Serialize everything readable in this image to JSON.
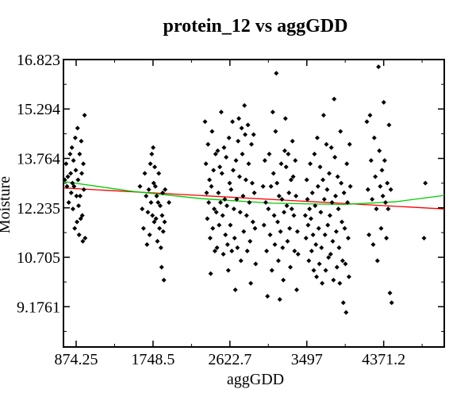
{
  "chart_data": {
    "type": "scatter",
    "title": "protein_12 vs aggGDD",
    "xlabel": "aggGDD",
    "ylabel": "Moisture",
    "xlim": [
      730,
      5060
    ],
    "ylim": [
      7.93,
      16.823
    ],
    "x_ticks": [
      874.25,
      1748.5,
      2622.7,
      3497,
      4371.2
    ],
    "x_tick_labels": [
      "874.25",
      "1748.5",
      "2622.7",
      "3497",
      "4371.2"
    ],
    "y_ticks": [
      9.1761,
      10.705,
      12.235,
      13.764,
      15.294,
      16.823
    ],
    "y_tick_labels": [
      "9.1761",
      "10.705",
      "12.235",
      "13.764",
      "15.294",
      "16.823"
    ],
    "grid": false,
    "legend": "none",
    "fit_lines": [
      {
        "kind": "linear",
        "color": "#ff0000",
        "x": [
          730,
          5060
        ],
        "y": [
          12.85,
          12.2
        ]
      },
      {
        "kind": "quadratic",
        "color": "#00cc00",
        "x": [
          730,
          1500,
          2300,
          3100,
          3900,
          4500,
          5060
        ],
        "y": [
          13.05,
          12.75,
          12.52,
          12.38,
          12.34,
          12.42,
          12.62
        ]
      }
    ],
    "series": [
      {
        "marker_color": "#000000",
        "points": [
          [
            745,
            13.1
          ],
          [
            760,
            13.6
          ],
          [
            770,
            12.9
          ],
          [
            780,
            13.2
          ],
          [
            790,
            12.4
          ],
          [
            805,
            13.9
          ],
          [
            812,
            13.3
          ],
          [
            818,
            12.7
          ],
          [
            826,
            14.1
          ],
          [
            832,
            13.0
          ],
          [
            838,
            12.2
          ],
          [
            844,
            13.7
          ],
          [
            850,
            12.9
          ],
          [
            858,
            11.6
          ],
          [
            864,
            14.4
          ],
          [
            870,
            13.4
          ],
          [
            878,
            12.6
          ],
          [
            884,
            11.8
          ],
          [
            890,
            14.7
          ],
          [
            896,
            13.1
          ],
          [
            902,
            12.3
          ],
          [
            908,
            11.4
          ],
          [
            914,
            13.9
          ],
          [
            920,
            12.6
          ],
          [
            926,
            11.9
          ],
          [
            932,
            14.3
          ],
          [
            938,
            13.3
          ],
          [
            944,
            12.0
          ],
          [
            950,
            11.2
          ],
          [
            956,
            13.6
          ],
          [
            962,
            12.8
          ],
          [
            970,
            15.1
          ],
          [
            976,
            11.3
          ],
          [
            1600,
            12.9
          ],
          [
            1625,
            12.2
          ],
          [
            1640,
            11.6
          ],
          [
            1655,
            13.3
          ],
          [
            1670,
            12.6
          ],
          [
            1680,
            11.1
          ],
          [
            1690,
            12.1
          ],
          [
            1700,
            12.8
          ],
          [
            1710,
            11.4
          ],
          [
            1718,
            13.6
          ],
          [
            1726,
            12.4
          ],
          [
            1734,
            13.9
          ],
          [
            1742,
            12.0
          ],
          [
            1750,
            14.1
          ],
          [
            1756,
            13.0
          ],
          [
            1762,
            11.8
          ],
          [
            1768,
            13.5
          ],
          [
            1775,
            12.9
          ],
          [
            1782,
            11.9
          ],
          [
            1790,
            12.6
          ],
          [
            1798,
            11.2
          ],
          [
            1806,
            12.4
          ],
          [
            1814,
            13.3
          ],
          [
            1822,
            11.6
          ],
          [
            1830,
            12.3
          ],
          [
            1838,
            11.0
          ],
          [
            1846,
            10.4
          ],
          [
            1852,
            12.0
          ],
          [
            1858,
            12.7
          ],
          [
            1864,
            11.5
          ],
          [
            1872,
            10.0
          ],
          [
            1880,
            11.8
          ],
          [
            1886,
            12.8
          ],
          [
            1930,
            12.4
          ],
          [
            2340,
            14.9
          ],
          [
            2350,
            13.6
          ],
          [
            2358,
            12.7
          ],
          [
            2366,
            11.9
          ],
          [
            2374,
            14.2
          ],
          [
            2382,
            12.4
          ],
          [
            2390,
            13.1
          ],
          [
            2398,
            11.3
          ],
          [
            2404,
            10.2
          ],
          [
            2412,
            12.9
          ],
          [
            2420,
            14.6
          ],
          [
            2428,
            11.6
          ],
          [
            2436,
            13.4
          ],
          [
            2444,
            12.2
          ],
          [
            2452,
            10.9
          ],
          [
            2460,
            13.9
          ],
          [
            2468,
            12.1
          ],
          [
            2476,
            11.0
          ],
          [
            2484,
            14.0
          ],
          [
            2492,
            12.7
          ],
          [
            2500,
            11.7
          ],
          [
            2508,
            13.5
          ],
          [
            2516,
            12.4
          ],
          [
            2524,
            15.2
          ],
          [
            2532,
            13.3
          ],
          [
            2540,
            12.0
          ],
          [
            2548,
            10.8
          ],
          [
            2556,
            14.1
          ],
          [
            2564,
            12.5
          ],
          [
            2572,
            11.4
          ],
          [
            2580,
            13.8
          ],
          [
            2588,
            12.3
          ],
          [
            2596,
            11.1
          ],
          [
            2604,
            10.3
          ],
          [
            2612,
            14.4
          ],
          [
            2620,
            13.0
          ],
          [
            2628,
            11.7
          ],
          [
            2636,
            12.8
          ],
          [
            2644,
            10.9
          ],
          [
            2652,
            14.9
          ],
          [
            2660,
            13.4
          ],
          [
            2668,
            12.2
          ],
          [
            2676,
            11.3
          ],
          [
            2684,
            9.7
          ],
          [
            2692,
            13.7
          ],
          [
            2700,
            12.5
          ],
          [
            2708,
            11.0
          ],
          [
            2716,
            14.3
          ],
          [
            2724,
            15.0
          ],
          [
            2732,
            13.2
          ],
          [
            2740,
            12.1
          ],
          [
            2748,
            10.6
          ],
          [
            2756,
            14.7
          ],
          [
            2764,
            13.9
          ],
          [
            2772,
            12.6
          ],
          [
            2780,
            11.5
          ],
          [
            2788,
            15.4
          ],
          [
            2796,
            14.5
          ],
          [
            2804,
            13.1
          ],
          [
            2812,
            12.0
          ],
          [
            2820,
            10.9
          ],
          [
            2828,
            14.8
          ],
          [
            2836,
            13.6
          ],
          [
            2844,
            12.4
          ],
          [
            2852,
            11.2
          ],
          [
            2860,
            9.9
          ],
          [
            2868,
            14.2
          ],
          [
            2876,
            13.0
          ],
          [
            2884,
            11.8
          ],
          [
            2892,
            14.5
          ],
          [
            2900,
            12.7
          ],
          [
            2908,
            11.6
          ],
          [
            2916,
            10.5
          ],
          [
            3000,
            12.9
          ],
          [
            3010,
            11.7
          ],
          [
            3020,
            13.7
          ],
          [
            3030,
            12.4
          ],
          [
            3040,
            10.9
          ],
          [
            3050,
            9.5
          ],
          [
            3060,
            12.2
          ],
          [
            3070,
            13.9
          ],
          [
            3080,
            11.4
          ],
          [
            3090,
            12.9
          ],
          [
            3100,
            10.3
          ],
          [
            3110,
            15.2
          ],
          [
            3118,
            13.3
          ],
          [
            3126,
            12.0
          ],
          [
            3134,
            11.1
          ],
          [
            3142,
            14.6
          ],
          [
            3150,
            16.4
          ],
          [
            3158,
            13.0
          ],
          [
            3166,
            11.8
          ],
          [
            3174,
            10.6
          ],
          [
            3182,
            12.6
          ],
          [
            3190,
            9.4
          ],
          [
            3198,
            11.5
          ],
          [
            3206,
            13.6
          ],
          [
            3214,
            12.5
          ],
          [
            3222,
            11.0
          ],
          [
            3230,
            10.0
          ],
          [
            3238,
            12.1
          ],
          [
            3246,
            14.0
          ],
          [
            3254,
            15.0
          ],
          [
            3262,
            13.5
          ],
          [
            3270,
            12.3
          ],
          [
            3278,
            11.2
          ],
          [
            3286,
            13.9
          ],
          [
            3294,
            12.7
          ],
          [
            3302,
            11.6
          ],
          [
            3310,
            10.4
          ],
          [
            3318,
            13.1
          ],
          [
            3326,
            12.2
          ],
          [
            3334,
            14.3
          ],
          [
            3342,
            13.2
          ],
          [
            3350,
            12.0
          ],
          [
            3358,
            10.9
          ],
          [
            3366,
            13.7
          ],
          [
            3374,
            12.6
          ],
          [
            3382,
            9.7
          ],
          [
            3390,
            11.5
          ],
          [
            3398,
            10.8
          ],
          [
            3480,
            12.0
          ],
          [
            3488,
            11.3
          ],
          [
            3496,
            13.1
          ],
          [
            3504,
            12.5
          ],
          [
            3512,
            11.7
          ],
          [
            3520,
            10.6
          ],
          [
            3528,
            12.2
          ],
          [
            3536,
            13.6
          ],
          [
            3544,
            11.9
          ],
          [
            3552,
            10.9
          ],
          [
            3560,
            12.7
          ],
          [
            3568,
            11.4
          ],
          [
            3576,
            10.3
          ],
          [
            3584,
            13.9
          ],
          [
            3592,
            12.3
          ],
          [
            3600,
            11.1
          ],
          [
            3608,
            10.1
          ],
          [
            3616,
            14.4
          ],
          [
            3624,
            12.9
          ],
          [
            3632,
            11.6
          ],
          [
            3640,
            10.5
          ],
          [
            3648,
            13.5
          ],
          [
            3656,
            12.1
          ],
          [
            3664,
            11.0
          ],
          [
            3672,
            9.9
          ],
          [
            3680,
            13.1
          ],
          [
            3688,
            15.1
          ],
          [
            3696,
            12.5
          ],
          [
            3704,
            11.4
          ],
          [
            3712,
            10.3
          ],
          [
            3720,
            14.2
          ],
          [
            3728,
            12.8
          ],
          [
            3736,
            11.7
          ],
          [
            3744,
            10.7
          ],
          [
            3752,
            13.3
          ],
          [
            3760,
            12.0
          ],
          [
            3768,
            10.8
          ],
          [
            3776,
            14.1
          ],
          [
            3784,
            12.4
          ],
          [
            3792,
            11.2
          ],
          [
            3800,
            10.0
          ],
          [
            3808,
            15.6
          ],
          [
            3816,
            13.8
          ],
          [
            3824,
            12.6
          ],
          [
            3832,
            11.5
          ],
          [
            3840,
            10.4
          ],
          [
            3848,
            13.2
          ],
          [
            3856,
            12.2
          ],
          [
            3864,
            11.0
          ],
          [
            3872,
            9.9
          ],
          [
            3880,
            14.6
          ],
          [
            3888,
            13.0
          ],
          [
            3896,
            11.8
          ],
          [
            3904,
            10.6
          ],
          [
            3912,
            9.3
          ],
          [
            3920,
            12.7
          ],
          [
            3928,
            11.6
          ],
          [
            3936,
            10.5
          ],
          [
            3944,
            9.0
          ],
          [
            3952,
            13.6
          ],
          [
            3960,
            12.4
          ],
          [
            3968,
            11.3
          ],
          [
            3976,
            10.1
          ],
          [
            3984,
            14.2
          ],
          [
            3992,
            12.9
          ],
          [
            4180,
            14.9
          ],
          [
            4192,
            12.8
          ],
          [
            4204,
            11.4
          ],
          [
            4216,
            15.1
          ],
          [
            4228,
            13.7
          ],
          [
            4240,
            12.5
          ],
          [
            4252,
            11.1
          ],
          [
            4264,
            14.4
          ],
          [
            4276,
            13.2
          ],
          [
            4288,
            12.2
          ],
          [
            4300,
            10.6
          ],
          [
            4312,
            16.6
          ],
          [
            4322,
            14.0
          ],
          [
            4332,
            12.9
          ],
          [
            4342,
            11.6
          ],
          [
            4352,
            13.4
          ],
          [
            4362,
            12.6
          ],
          [
            4372,
            15.5
          ],
          [
            4382,
            13.7
          ],
          [
            4392,
            12.4
          ],
          [
            4402,
            11.3
          ],
          [
            4412,
            13.0
          ],
          [
            4422,
            12.2
          ],
          [
            4432,
            14.8
          ],
          [
            4442,
            9.6
          ],
          [
            4452,
            12.8
          ],
          [
            4462,
            9.3
          ],
          [
            4830,
            11.3
          ],
          [
            4845,
            13.0
          ]
        ]
      }
    ]
  }
}
